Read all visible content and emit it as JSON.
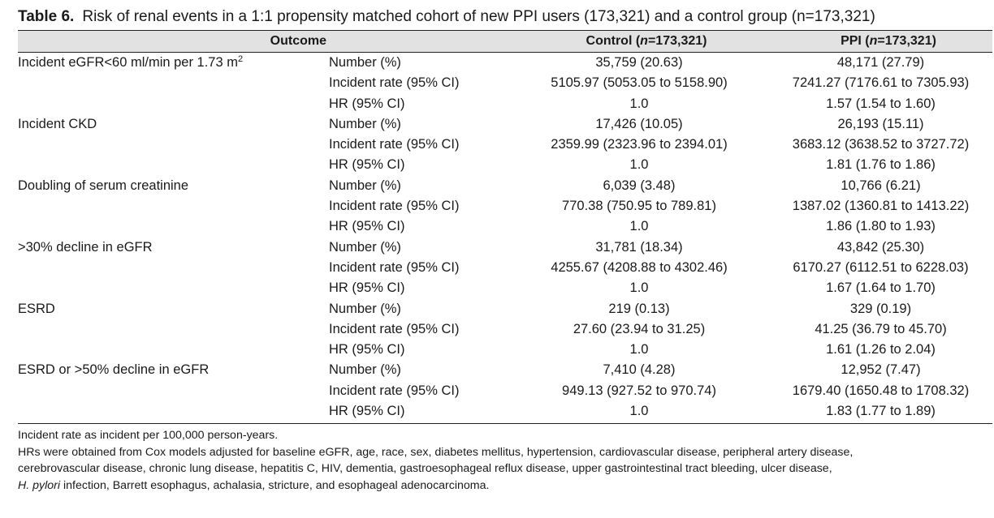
{
  "title": {
    "label": "Table 6.",
    "text": "Risk of renal events in a 1:1 propensity matched cohort of new PPI users (173,321) and a control group (n=173,321)"
  },
  "header": {
    "outcome": "Outcome",
    "control_pre": "Control (",
    "control_n": "n",
    "control_post": "=173,321)",
    "ppi_pre": "PPI (",
    "ppi_n": "n",
    "ppi_post": "=173,321)"
  },
  "rows": [
    {
      "outcome": "Incident eGFR<60 ml/min per 1.73 m",
      "sup": "2",
      "stat": "Number (%)",
      "control": "35,759 (20.63)",
      "ppi": "48,171 (27.79)"
    },
    {
      "outcome": "",
      "stat": "Incident rate (95% CI)",
      "control": "5105.97 (5053.05 to 5158.90)",
      "ppi": "7241.27 (7176.61 to 7305.93)"
    },
    {
      "outcome": "",
      "stat": "HR (95% CI)",
      "control": "1.0",
      "ppi": "1.57 (1.54 to 1.60)"
    },
    {
      "outcome": "Incident CKD",
      "stat": "Number (%)",
      "control": "17,426 (10.05)",
      "ppi": "26,193 (15.11)"
    },
    {
      "outcome": "",
      "stat": "Incident rate (95% CI)",
      "control": "2359.99 (2323.96 to 2394.01)",
      "ppi": "3683.12 (3638.52 to 3727.72)"
    },
    {
      "outcome": "",
      "stat": "HR (95% CI)",
      "control": "1.0",
      "ppi": "1.81 (1.76 to 1.86)"
    },
    {
      "outcome": "Doubling of serum creatinine",
      "stat": "Number (%)",
      "control": "6,039 (3.48)",
      "ppi": "10,766 (6.21)"
    },
    {
      "outcome": "",
      "stat": "Incident rate (95% CI)",
      "control": "770.38 (750.95 to 789.81)",
      "ppi": "1387.02 (1360.81 to 1413.22)"
    },
    {
      "outcome": "",
      "stat": "HR (95% CI)",
      "control": "1.0",
      "ppi": "1.86 (1.80 to 1.93)"
    },
    {
      "outcome": ">30% decline in eGFR",
      "stat": "Number (%)",
      "control": "31,781 (18.34)",
      "ppi": "43,842 (25.30)"
    },
    {
      "outcome": "",
      "stat": "Incident rate (95% CI)",
      "control": "4255.67 (4208.88 to 4302.46)",
      "ppi": "6170.27 (6112.51 to 6228.03)"
    },
    {
      "outcome": "",
      "stat": "HR (95% CI)",
      "control": "1.0",
      "ppi": "1.67 (1.64 to 1.70)"
    },
    {
      "outcome": "ESRD",
      "stat": "Number (%)",
      "control": "219 (0.13)",
      "ppi": "329 (0.19)"
    },
    {
      "outcome": "",
      "stat": "Incident rate (95% CI)",
      "control": "27.60 (23.94 to 31.25)",
      "ppi": "41.25 (36.79 to 45.70)"
    },
    {
      "outcome": "",
      "stat": "HR (95% CI)",
      "control": "1.0",
      "ppi": "1.61 (1.26 to 2.04)"
    },
    {
      "outcome": "ESRD or >50% decline in eGFR",
      "stat": "Number (%)",
      "control": "7,410 (4.28)",
      "ppi": "12,952 (7.47)"
    },
    {
      "outcome": "",
      "stat": "Incident rate (95% CI)",
      "control": "949.13 (927.52 to 970.74)",
      "ppi": "1679.40 (1650.48 to 1708.32)"
    },
    {
      "outcome": "",
      "stat": "HR (95% CI)",
      "control": "1.0",
      "ppi": "1.83 (1.77 to 1.89)"
    }
  ],
  "notes": {
    "line1": "Incident rate as incident per 100,000 person-years.",
    "line2": "HRs were obtained from Cox models adjusted for baseline eGFR, age, race, sex, diabetes mellitus, hypertension, cardiovascular disease, peripheral artery disease,",
    "line3": "cerebrovascular disease, chronic lung disease, hepatitis C, HIV, dementia, gastroesophageal reflux disease, upper gastrointestinal tract bleeding, ulcer disease,",
    "line4_italic": "H. pylori",
    "line4_rest": " infection, Barrett esophagus, achalasia, stricture, and esophageal adenocarcinoma."
  }
}
